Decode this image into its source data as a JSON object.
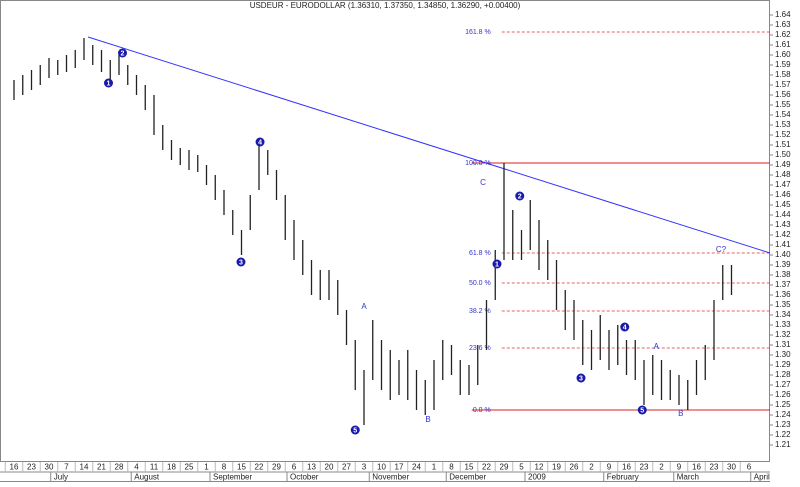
{
  "chart_data": {
    "type": "ohlc",
    "title": "USDEUR - EURODOLLAR (1.36310, 1.37350, 1.34850, 1.36290, +0.00400)",
    "color": "#222222",
    "xlim": [
      -0.8,
      43.2
    ],
    "ylim": [
      1.195,
      1.65
    ],
    "x": [
      0,
      0.5,
      1,
      1.5,
      2,
      2.5,
      3,
      3.5,
      4,
      4.5,
      5,
      5.5,
      6,
      6.5,
      7,
      7.5,
      8,
      8.5,
      9,
      9.5,
      10,
      10.5,
      11,
      11.5,
      12,
      12.5,
      13,
      13.5,
      14,
      14.5,
      15,
      15.5,
      16,
      16.5,
      17,
      17.5,
      18,
      18.5,
      19,
      19.5,
      20,
      20.5,
      21,
      21.5,
      22,
      22.5,
      23,
      23.5,
      24,
      24.5,
      25,
      25.5,
      26,
      26.5,
      27,
      27.5,
      28,
      28.5,
      29,
      29.5,
      30,
      30.5,
      31,
      31.5,
      32,
      32.5,
      33,
      33.5,
      34,
      34.5,
      35,
      35.5,
      36,
      36.5,
      37,
      37.5,
      38,
      38.5,
      39,
      39.5,
      40,
      40.5,
      41
    ],
    "high": [
      1.575,
      1.58,
      1.585,
      1.59,
      1.597,
      1.595,
      1.6,
      1.605,
      1.617,
      1.61,
      1.605,
      1.595,
      1.6,
      1.59,
      1.58,
      1.57,
      1.56,
      1.53,
      1.515,
      1.507,
      1.505,
      1.5,
      1.49,
      1.48,
      1.465,
      1.445,
      1.425,
      1.46,
      1.51,
      1.505,
      1.485,
      1.46,
      1.435,
      1.415,
      1.395,
      1.385,
      1.385,
      1.375,
      1.345,
      1.315,
      1.285,
      1.335,
      1.315,
      1.305,
      1.295,
      1.305,
      1.285,
      1.275,
      1.295,
      1.315,
      1.31,
      1.295,
      1.29,
      1.31,
      1.355,
      1.405,
      1.492,
      1.445,
      1.425,
      1.455,
      1.435,
      1.415,
      1.395,
      1.365,
      1.355,
      1.335,
      1.325,
      1.34,
      1.325,
      1.33,
      1.315,
      1.315,
      1.295,
      1.3,
      1.295,
      1.285,
      1.28,
      1.275,
      1.295,
      1.31,
      1.355,
      1.39,
      1.39
    ],
    "low": [
      1.555,
      1.56,
      1.565,
      1.57,
      1.577,
      1.58,
      1.583,
      1.587,
      1.595,
      1.59,
      1.583,
      1.57,
      1.58,
      1.57,
      1.56,
      1.545,
      1.52,
      1.505,
      1.495,
      1.49,
      1.485,
      1.483,
      1.47,
      1.455,
      1.44,
      1.42,
      1.4,
      1.425,
      1.465,
      1.48,
      1.455,
      1.415,
      1.395,
      1.38,
      1.36,
      1.355,
      1.355,
      1.34,
      1.31,
      1.265,
      1.23,
      1.275,
      1.265,
      1.255,
      1.26,
      1.255,
      1.245,
      1.24,
      1.245,
      1.275,
      1.28,
      1.26,
      1.26,
      1.27,
      1.305,
      1.355,
      1.395,
      1.395,
      1.395,
      1.405,
      1.385,
      1.375,
      1.345,
      1.325,
      1.315,
      1.29,
      1.285,
      1.295,
      1.285,
      1.29,
      1.28,
      1.275,
      1.25,
      1.26,
      1.255,
      1.255,
      1.25,
      1.245,
      1.26,
      1.275,
      1.295,
      1.355,
      1.36
    ],
    "yticks": [
      1.21,
      {
        "value": 1.22,
        "label": "1.22"
      },
      1.23,
      1.24,
      1.25,
      1.26,
      1.27,
      1.28,
      1.29,
      {
        "value": 1.3,
        "label": "1.30"
      },
      1.31,
      1.32,
      1.33,
      1.34,
      1.35,
      1.36,
      1.37,
      1.38,
      1.39,
      {
        "value": 1.4,
        "label": "1.40"
      },
      1.41,
      1.42,
      1.43,
      1.44,
      1.45,
      1.46,
      1.47,
      1.48,
      1.49,
      {
        "value": 1.5,
        "label": "1.50"
      },
      1.51,
      1.52,
      1.53,
      1.54,
      1.55,
      1.56,
      1.57,
      1.58,
      1.59,
      {
        "value": 1.6,
        "label": "1.60"
      },
      1.61,
      1.62,
      1.63,
      1.64
    ],
    "xticks": [
      {
        "value": 0,
        "label": "16"
      },
      {
        "value": 1,
        "label": "23"
      },
      {
        "value": 2,
        "label": "30"
      },
      {
        "value": 3,
        "label": "7"
      },
      {
        "value": 4,
        "label": "14"
      },
      {
        "value": 5,
        "label": "21"
      },
      {
        "value": 6,
        "label": "28"
      },
      {
        "value": 7,
        "label": "4"
      },
      {
        "value": 8,
        "label": "11"
      },
      {
        "value": 9,
        "label": "18"
      },
      {
        "value": 10,
        "label": "25"
      },
      {
        "value": 11,
        "label": "1"
      },
      {
        "value": 12,
        "label": "8"
      },
      {
        "value": 13,
        "label": "15"
      },
      {
        "value": 14,
        "label": "22"
      },
      {
        "value": 15,
        "label": "29"
      },
      {
        "value": 16,
        "label": "6"
      },
      {
        "value": 17,
        "label": "13"
      },
      {
        "value": 18,
        "label": "20"
      },
      {
        "value": 19,
        "label": "27"
      },
      {
        "value": 20,
        "label": "3"
      },
      {
        "value": 21,
        "label": "10"
      },
      {
        "value": 22,
        "label": "17"
      },
      {
        "value": 23,
        "label": "24"
      },
      {
        "value": 24,
        "label": "1"
      },
      {
        "value": 25,
        "label": "8"
      },
      {
        "value": 26,
        "label": "15"
      },
      {
        "value": 27,
        "label": "22"
      },
      {
        "value": 28,
        "label": "29"
      },
      {
        "value": 29,
        "label": "5"
      },
      {
        "value": 30,
        "label": "12"
      },
      {
        "value": 31,
        "label": "19"
      },
      {
        "value": 32,
        "label": "26"
      },
      {
        "value": 33,
        "label": "2"
      },
      {
        "value": 34,
        "label": "9"
      },
      {
        "value": 35,
        "label": "16"
      },
      {
        "value": 36,
        "label": "23"
      },
      {
        "value": 37,
        "label": "2"
      },
      {
        "value": 38,
        "label": "9"
      },
      {
        "value": 39,
        "label": "16"
      },
      {
        "value": 40,
        "label": "23"
      },
      {
        "value": 41,
        "label": "30"
      },
      {
        "value": 42,
        "label": "6"
      }
    ],
    "months": [
      {
        "label": "July",
        "x": 2.1
      },
      {
        "label": "August",
        "x": 6.7
      },
      {
        "label": "September",
        "x": 11.2
      },
      {
        "label": "October",
        "x": 15.6
      },
      {
        "label": "November",
        "x": 20.3
      },
      {
        "label": "December",
        "x": 24.7
      },
      {
        "label": "2009",
        "x": 29.2
      },
      {
        "label": "February",
        "x": 33.7
      },
      {
        "label": "March",
        "x": 37.7
      },
      {
        "label": "April",
        "x": 42.1
      }
    ],
    "trendline": {
      "x": [
        4.23,
        43.2
      ],
      "y": [
        1.618,
        1.402
      ],
      "color": "#3333ff"
    },
    "fib_levels": [
      {
        "label": "161.8 %",
        "value": 1.623,
        "solid": false
      },
      {
        "label": "100.0 %",
        "value": 1.492,
        "solid": true
      },
      {
        "label": "61.8 %",
        "value": 1.402,
        "solid": false
      },
      {
        "label": "50.0 %",
        "value": 1.372,
        "solid": false
      },
      {
        "label": "38.2 %",
        "value": 1.344,
        "solid": false
      },
      {
        "label": "23.6 %",
        "value": 1.307,
        "solid": false
      },
      {
        "label": "0.0 %",
        "value": 1.245,
        "solid": true
      }
    ],
    "fib_start": 27.3,
    "fib_color": "#dd2222",
    "annotations": [
      {
        "text": "1",
        "x": 5.4,
        "y": 1.572,
        "circled": true
      },
      {
        "text": "2",
        "x": 6.2,
        "y": 1.602,
        "circled": true
      },
      {
        "text": "3",
        "x": 12.97,
        "y": 1.393,
        "circled": true
      },
      {
        "text": "4",
        "x": 14.06,
        "y": 1.513,
        "circled": true
      },
      {
        "text": "5",
        "x": 19.5,
        "y": 1.225,
        "circled": true
      },
      {
        "text": "A",
        "x": 20,
        "y": 1.348,
        "circled": false
      },
      {
        "text": "B",
        "x": 23.66,
        "y": 1.235,
        "circled": false
      },
      {
        "text": "C",
        "x": 26.8,
        "y": 1.472,
        "circled": false
      },
      {
        "text": "1",
        "x": 27.6,
        "y": 1.391,
        "circled": true
      },
      {
        "text": "2",
        "x": 28.9,
        "y": 1.459,
        "circled": true
      },
      {
        "text": "3",
        "x": 32.4,
        "y": 1.277,
        "circled": true
      },
      {
        "text": "4",
        "x": 34.9,
        "y": 1.328,
        "circled": true
      },
      {
        "text": "5",
        "x": 35.9,
        "y": 1.245,
        "circled": true
      },
      {
        "text": "A",
        "x": 36.7,
        "y": 1.308,
        "circled": false
      },
      {
        "text": "B",
        "x": 38.1,
        "y": 1.241,
        "circled": false
      },
      {
        "text": "C?",
        "x": 40.4,
        "y": 1.405,
        "circled": false
      }
    ]
  }
}
